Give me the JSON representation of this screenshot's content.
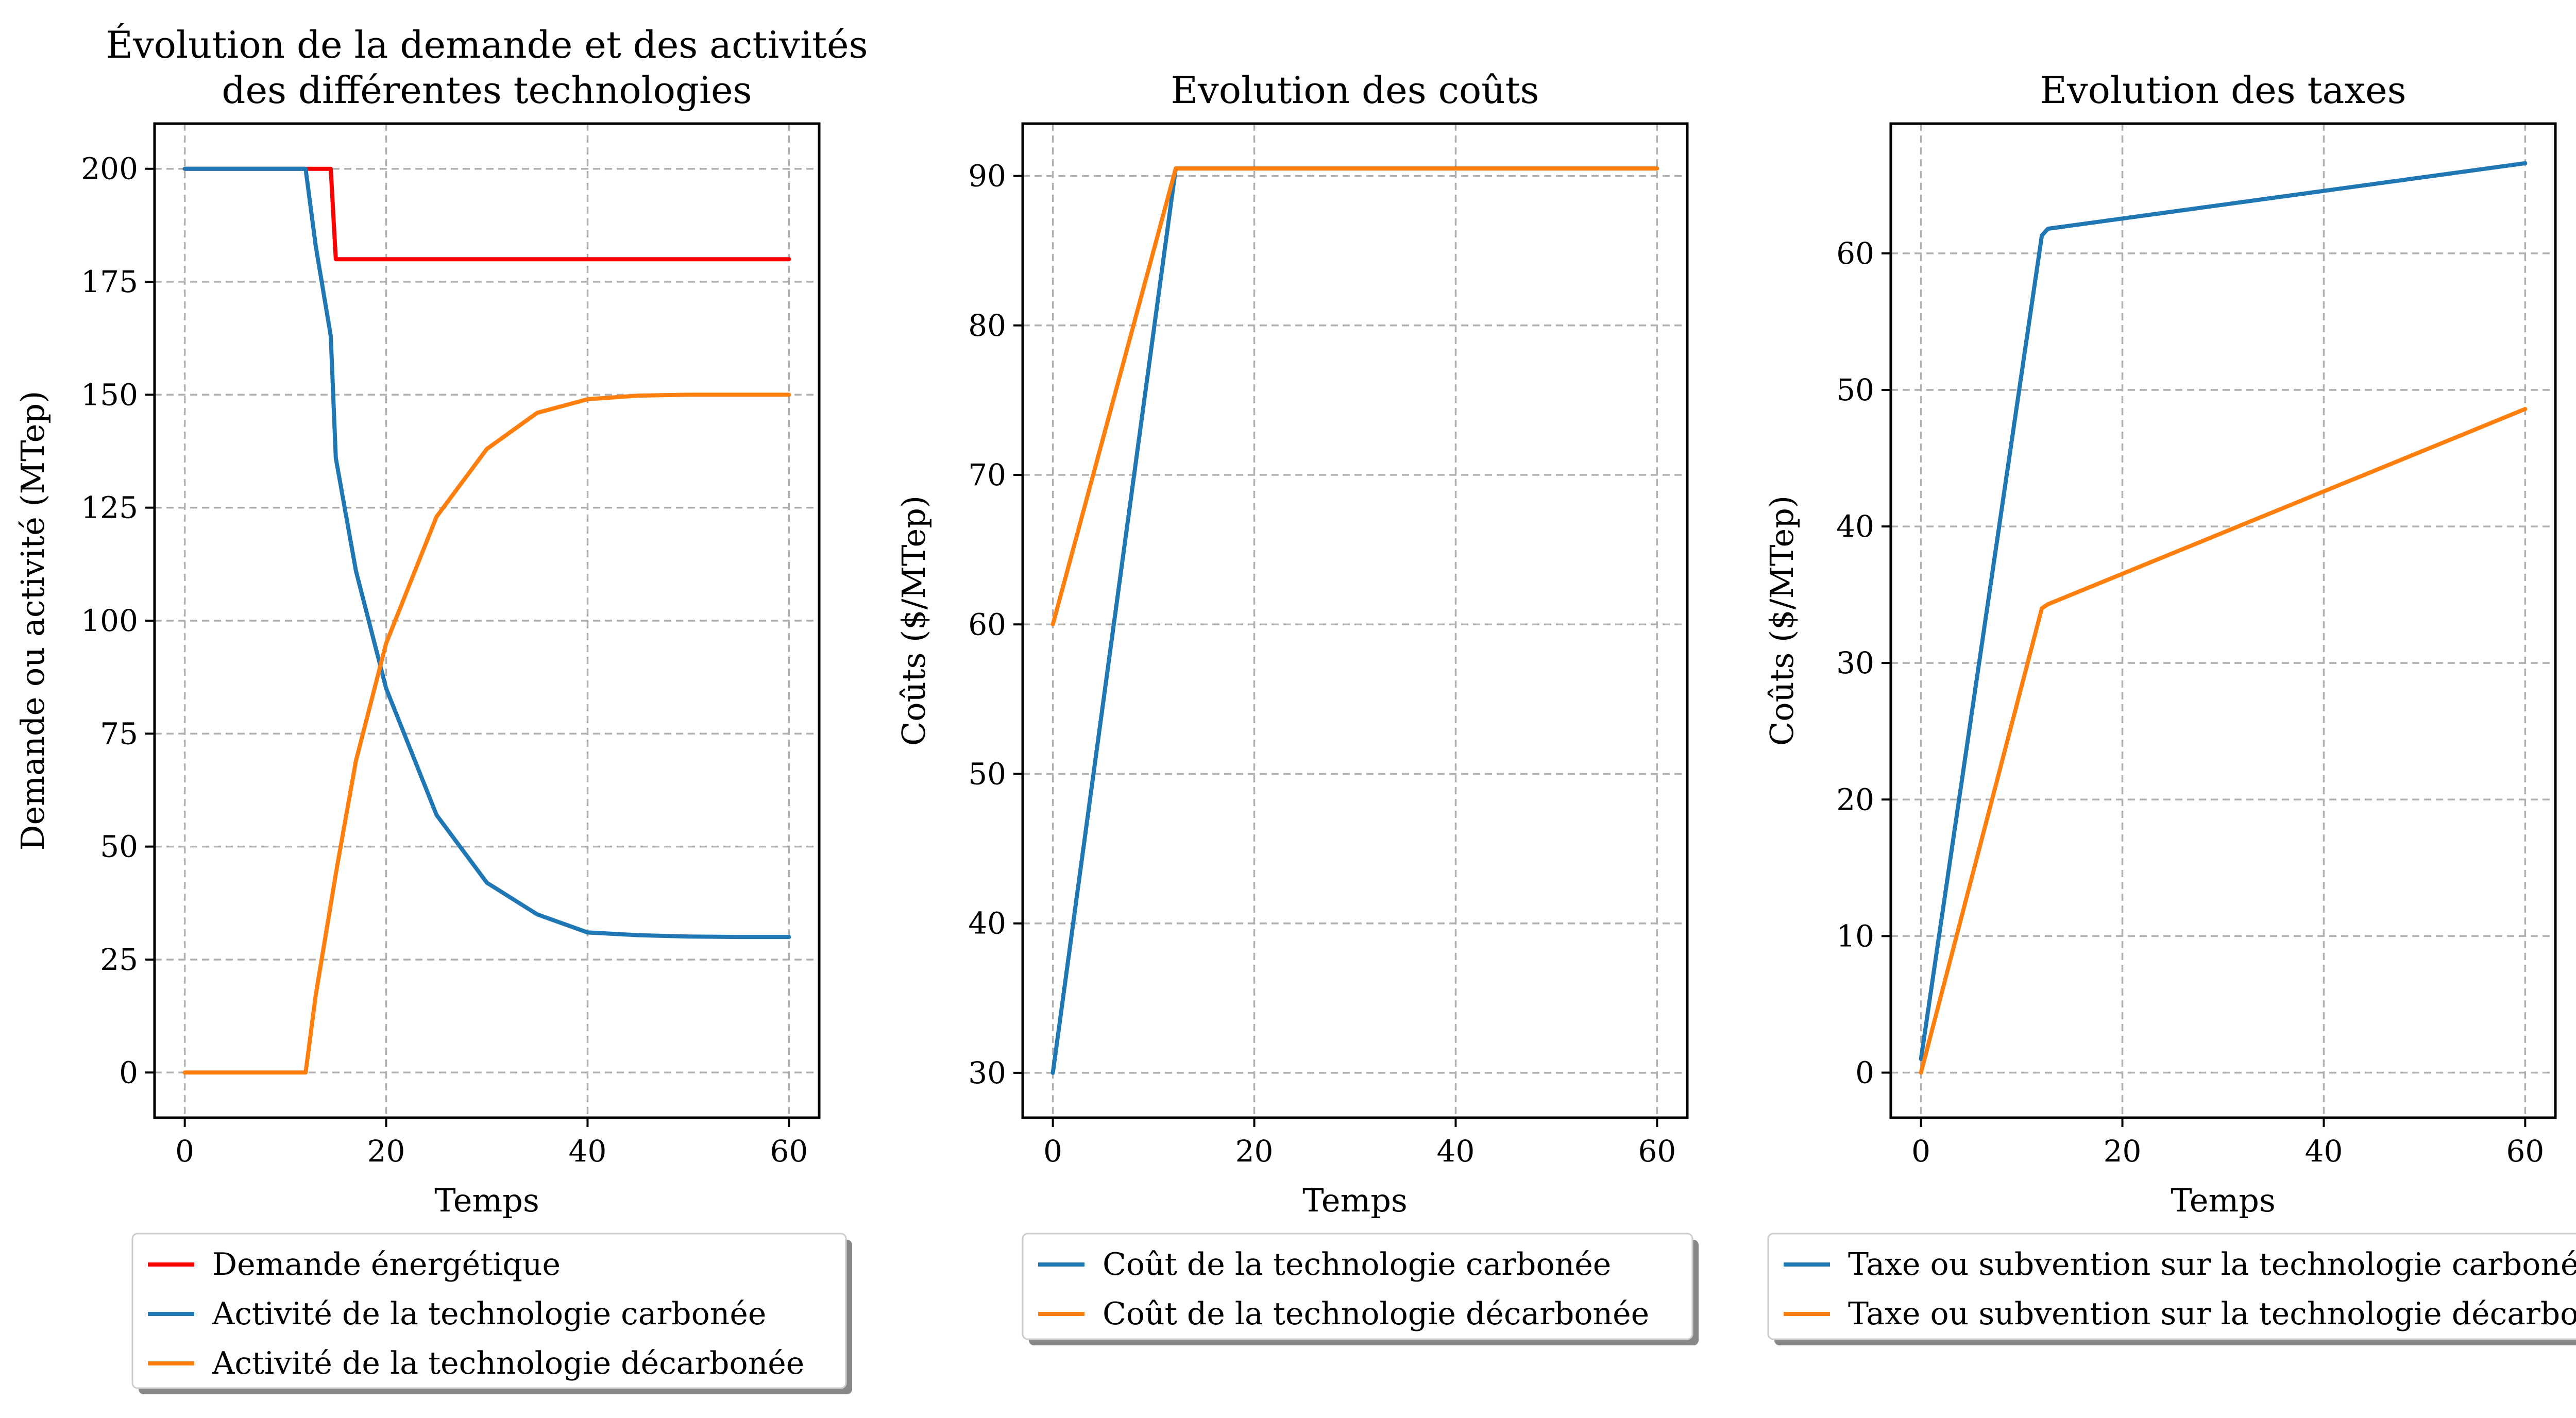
{
  "chart_data": [
    {
      "type": "line",
      "title_lines": [
        "Évolution de la demande et des activités",
        "des différentes technologies"
      ],
      "xlabel": "Temps",
      "ylabel": "Demande ou activité (MTep)",
      "xlim": [
        -3,
        63
      ],
      "ylim": [
        -10,
        210
      ],
      "xticks": [
        0,
        20,
        40,
        60
      ],
      "yticks": [
        0,
        25,
        50,
        75,
        100,
        125,
        150,
        175,
        200
      ],
      "grid": true,
      "legend_position": "below",
      "series": [
        {
          "name": "Demande énergétique",
          "color": "#ff0000",
          "x": [
            0,
            14.5,
            15,
            60
          ],
          "y": [
            200,
            200,
            180,
            180
          ]
        },
        {
          "name": "Activité de la technologie carbonée",
          "color": "#1f77b4",
          "x": [
            0,
            12,
            13,
            14.5,
            15,
            17,
            20,
            25,
            30,
            35,
            40,
            45,
            50,
            55,
            60
          ],
          "y": [
            200,
            200,
            183,
            163,
            136,
            111,
            85,
            57,
            42,
            35,
            31,
            30.4,
            30.1,
            30,
            30
          ]
        },
        {
          "name": "Activité de la technologie décarbonée",
          "color": "#ff7f0e",
          "x": [
            0,
            12,
            13,
            15,
            17,
            20,
            25,
            30,
            35,
            40,
            45,
            50,
            55,
            60
          ],
          "y": [
            0,
            0,
            17,
            44,
            69,
            95,
            123,
            138,
            146,
            149,
            149.8,
            150,
            150,
            150
          ]
        }
      ]
    },
    {
      "type": "line",
      "title_lines": [
        "Evolution des coûts"
      ],
      "xlabel": "Temps",
      "ylabel": "Coûts ($/MTep)",
      "xlim": [
        -3,
        63
      ],
      "ylim": [
        27,
        93.5
      ],
      "xticks": [
        0,
        20,
        40,
        60
      ],
      "yticks": [
        30,
        40,
        50,
        60,
        70,
        80,
        90
      ],
      "grid": true,
      "legend_position": "below",
      "series": [
        {
          "name": "Coût de la technologie carbonée",
          "color": "#1f77b4",
          "x": [
            0,
            12.2,
            60
          ],
          "y": [
            30,
            90.5,
            90.5
          ]
        },
        {
          "name": "Coût de la technologie décarbonée",
          "color": "#ff7f0e",
          "x": [
            0,
            12.2,
            60
          ],
          "y": [
            60,
            90.5,
            90.5
          ]
        }
      ]
    },
    {
      "type": "line",
      "title_lines": [
        "Evolution des taxes"
      ],
      "xlabel": "Temps",
      "ylabel": "Coûts ($/MTep)",
      "xlim": [
        -3,
        63
      ],
      "ylim": [
        -3.3,
        69.5
      ],
      "xticks": [
        0,
        20,
        40,
        60
      ],
      "yticks": [
        0,
        10,
        20,
        30,
        40,
        50,
        60
      ],
      "grid": true,
      "legend_position": "below",
      "series": [
        {
          "name": "Taxe ou subvention sur la technologie carbonée",
          "color": "#1f77b4",
          "x": [
            0,
            12,
            12.6,
            60
          ],
          "y": [
            1,
            61.3,
            61.8,
            66.6
          ]
        },
        {
          "name": "Taxe ou subvention sur la technologie décarbonée",
          "color": "#ff7f0e",
          "x": [
            0,
            12,
            12.6,
            60
          ],
          "y": [
            0,
            34,
            34.3,
            48.6
          ]
        }
      ]
    }
  ]
}
